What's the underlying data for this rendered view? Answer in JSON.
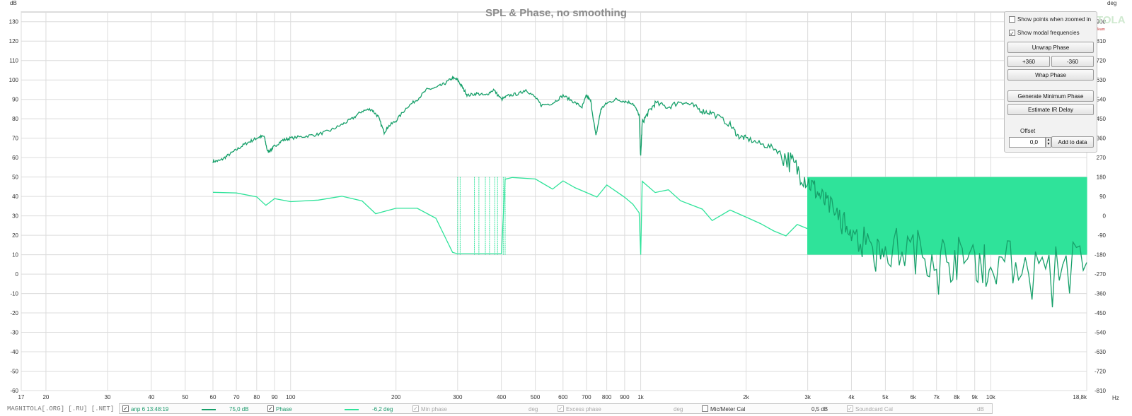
{
  "chart_data": {
    "type": "line",
    "title": "SPL & Phase, no smoothing",
    "x_scale": "log",
    "xlim": [
      17,
      18800
    ],
    "x_ticks": [
      17,
      20,
      30,
      40,
      50,
      60,
      70,
      80,
      90,
      100,
      200,
      300,
      400,
      500,
      600,
      700,
      800,
      900,
      1000,
      2000,
      3000,
      4000,
      5000,
      6000,
      7000,
      8000,
      9000,
      10000,
      18800
    ],
    "x_tick_labels": [
      "17",
      "20",
      "30",
      "40",
      "50",
      "60",
      "70",
      "80",
      "90",
      "100",
      "200",
      "300",
      "400",
      "500",
      "600",
      "700",
      "800",
      "900",
      "1k",
      "2k",
      "3k",
      "4k",
      "5k",
      "6k",
      "7k",
      "8k",
      "9k",
      "10k",
      "18,8k"
    ],
    "x_unit": "Hz",
    "y_left_unit": "dB",
    "ylim_left": [
      -60,
      135
    ],
    "y_left_ticks": [
      -60,
      -50,
      -40,
      -30,
      -20,
      -10,
      0,
      10,
      20,
      30,
      40,
      50,
      60,
      70,
      80,
      90,
      100,
      110,
      120,
      130
    ],
    "y_right_unit": "deg",
    "ylim_right": [
      -810,
      945
    ],
    "y_right_ticks": [
      -810,
      -720,
      -630,
      -540,
      -450,
      -360,
      -270,
      -180,
      -90,
      0,
      90,
      180,
      270,
      360,
      450,
      540,
      630,
      720,
      810,
      900
    ],
    "grid": true,
    "series": [
      {
        "name": "anp 6 13:48:19",
        "axis": "left",
        "color": "#17a06a",
        "points": [
          [
            60,
            58
          ],
          [
            63,
            58.5
          ],
          [
            66,
            61
          ],
          [
            70,
            64
          ],
          [
            74,
            67
          ],
          [
            78,
            69
          ],
          [
            81,
            70.5
          ],
          [
            84,
            71
          ],
          [
            86,
            63
          ],
          [
            88,
            64
          ],
          [
            90,
            66
          ],
          [
            95,
            69
          ],
          [
            100,
            70
          ],
          [
            110,
            71
          ],
          [
            120,
            72
          ],
          [
            130,
            74
          ],
          [
            140,
            77
          ],
          [
            150,
            80
          ],
          [
            160,
            84
          ],
          [
            170,
            85
          ],
          [
            178,
            81
          ],
          [
            185,
            73
          ],
          [
            190,
            76
          ],
          [
            200,
            79
          ],
          [
            215,
            86
          ],
          [
            230,
            90
          ],
          [
            245,
            95
          ],
          [
            260,
            96
          ],
          [
            275,
            98
          ],
          [
            290,
            101
          ],
          [
            300,
            100
          ],
          [
            310,
            96
          ],
          [
            320,
            92
          ],
          [
            340,
            93
          ],
          [
            360,
            92
          ],
          [
            380,
            95
          ],
          [
            400,
            90
          ],
          [
            420,
            92
          ],
          [
            450,
            93
          ],
          [
            470,
            95
          ],
          [
            500,
            91
          ],
          [
            520,
            87
          ],
          [
            560,
            88
          ],
          [
            600,
            92
          ],
          [
            640,
            89
          ],
          [
            680,
            86
          ],
          [
            700,
            92
          ],
          [
            720,
            89
          ],
          [
            745,
            71
          ],
          [
            770,
            85
          ],
          [
            800,
            88
          ],
          [
            850,
            90
          ],
          [
            900,
            89
          ],
          [
            950,
            88
          ],
          [
            990,
            82
          ],
          [
            1000,
            60
          ],
          [
            1010,
            78
          ],
          [
            1050,
            83
          ],
          [
            1100,
            88
          ],
          [
            1200,
            86
          ],
          [
            1300,
            89
          ],
          [
            1400,
            87
          ],
          [
            1500,
            84
          ],
          [
            1600,
            83
          ],
          [
            1800,
            77
          ],
          [
            1900,
            71
          ],
          [
            2000,
            70
          ],
          [
            2200,
            67
          ],
          [
            2400,
            65
          ],
          [
            2600,
            60
          ],
          [
            2800,
            54
          ],
          [
            3000,
            48
          ],
          [
            3200,
            42
          ],
          [
            3400,
            36
          ],
          [
            3700,
            30
          ],
          [
            4000,
            24
          ],
          [
            4500,
            18
          ],
          [
            5000,
            14
          ],
          [
            6000,
            12
          ],
          [
            7000,
            10
          ],
          [
            8000,
            8
          ],
          [
            9000,
            7
          ],
          [
            10000,
            6
          ],
          [
            12000,
            6
          ],
          [
            15000,
            6
          ],
          [
            18800,
            6
          ]
        ]
      },
      {
        "name": "Phase",
        "axis": "right",
        "color": "#2fe39a",
        "points": [
          [
            60,
            109
          ],
          [
            70,
            106
          ],
          [
            80,
            88
          ],
          [
            85,
            49
          ],
          [
            90,
            80
          ],
          [
            100,
            66
          ],
          [
            120,
            73
          ],
          [
            140,
            91
          ],
          [
            160,
            69
          ],
          [
            175,
            10
          ],
          [
            200,
            35
          ],
          [
            230,
            35
          ],
          [
            260,
            -11
          ],
          [
            290,
            -169
          ],
          [
            300,
            -176
          ],
          [
            320,
            -176
          ],
          [
            360,
            -176
          ],
          [
            400,
            -176
          ],
          [
            410,
            170
          ],
          [
            430,
            178
          ],
          [
            500,
            171
          ],
          [
            560,
            124
          ],
          [
            600,
            162
          ],
          [
            650,
            130
          ],
          [
            700,
            108
          ],
          [
            750,
            87
          ],
          [
            800,
            143
          ],
          [
            850,
            114
          ],
          [
            900,
            86
          ],
          [
            950,
            54
          ],
          [
            990,
            14
          ],
          [
            1000,
            -180
          ],
          [
            1010,
            160
          ],
          [
            1100,
            108
          ],
          [
            1200,
            121
          ],
          [
            1300,
            70
          ],
          [
            1500,
            31
          ],
          [
            1600,
            -22
          ],
          [
            1800,
            27
          ],
          [
            2000,
            -6
          ],
          [
            2200,
            -36
          ],
          [
            2400,
            -70
          ],
          [
            2600,
            -93
          ],
          [
            2800,
            -40
          ],
          [
            3000,
            -60
          ]
        ]
      }
    ],
    "noise_band_deg": [
      -180,
      180
    ],
    "noise_band_hz": [
      3000,
      18800
    ]
  },
  "panel": {
    "show_points_label": "Show points when zoomed in",
    "show_points_checked": false,
    "show_modal_label": "Show modal frequencies",
    "show_modal_checked": true,
    "unwrap_label": "Unwrap Phase",
    "plus360_label": "+360",
    "minus360_label": "-360",
    "wrap_label": "Wrap Phase",
    "gen_min_phase_label": "Generate Minimum Phase",
    "estimate_ir_label": "Estimate IR Delay",
    "offset_label": "Offset",
    "offset_value": "0,0",
    "add_to_data_label": "Add to data"
  },
  "logo": {
    "text": "MAGNITOLA",
    "sub": "Caraudio Team"
  },
  "legend": {
    "watermark": "MAGNITOLA[.ORG] [.RU] [.NET]",
    "spl_name": "anp 6 13:48:19",
    "spl_value": "75,0 dB",
    "phase_name": "Phase",
    "phase_value": "-6,2 deg",
    "min_phase_name": "Min phase",
    "min_phase_unit": "deg",
    "excess_phase_name": "Excess phase",
    "excess_phase_unit": "deg",
    "mic_cal_name": "Mic/Meter Cal",
    "mic_cal_value": "0,5 dB",
    "soundcard_cal_name": "Soundcard Cal",
    "soundcard_cal_unit": "dB"
  }
}
